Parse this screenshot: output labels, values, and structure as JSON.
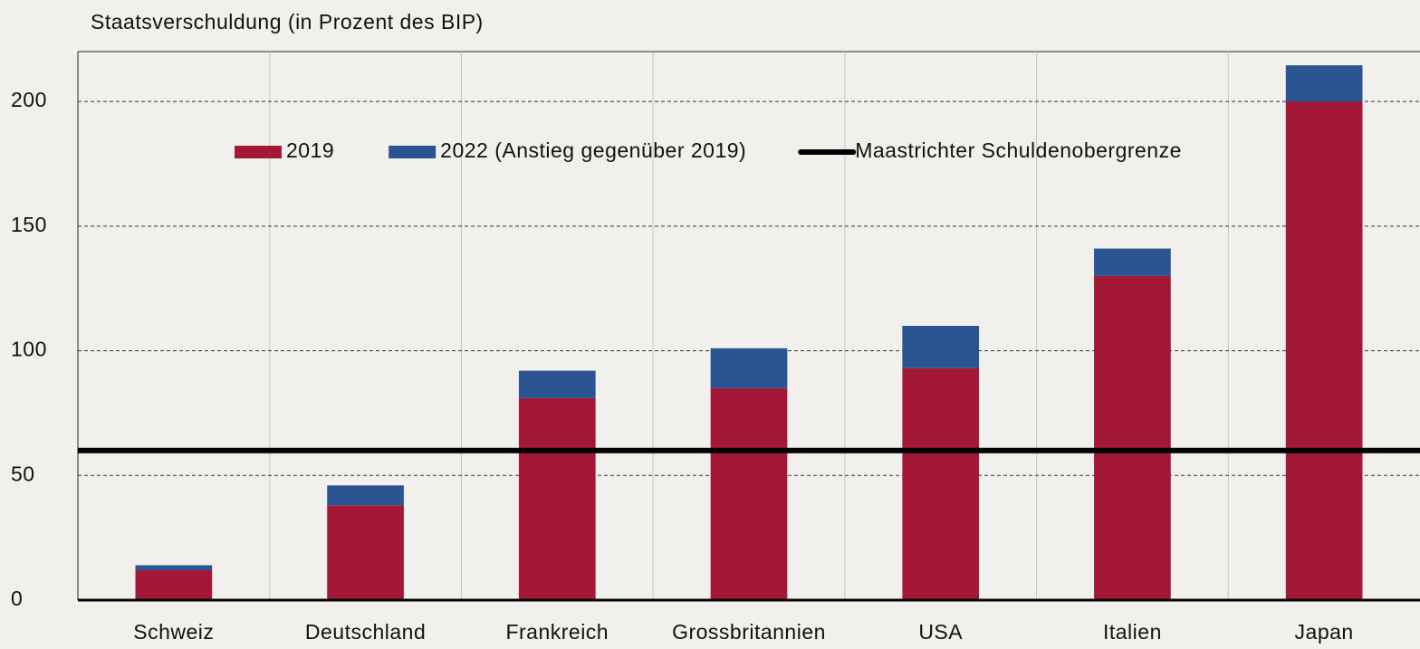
{
  "chart_data": {
    "type": "stacked_bar",
    "title": "Staatsverschuldung (in Prozent des BIP)",
    "categories": [
      "Schweiz",
      "Deutschland",
      "Frankreich",
      "Grossbritannien",
      "USA",
      "Italien",
      "Japan"
    ],
    "series": [
      {
        "name": "2019",
        "color": "#a31836",
        "values": [
          12,
          38,
          81,
          85,
          93,
          130,
          200
        ]
      },
      {
        "name": "2022 (Anstieg gegenüber 2019)",
        "color": "#2a5592",
        "values": [
          2,
          8,
          11,
          16,
          17,
          11,
          14.5
        ]
      }
    ],
    "reference_line": {
      "name": "Maastrichter Schuldenobergrenze",
      "value": 60,
      "color": "#000000"
    },
    "ylim": [
      0,
      220
    ],
    "yticks": [
      0,
      50,
      100,
      150,
      200
    ],
    "grid": true
  }
}
